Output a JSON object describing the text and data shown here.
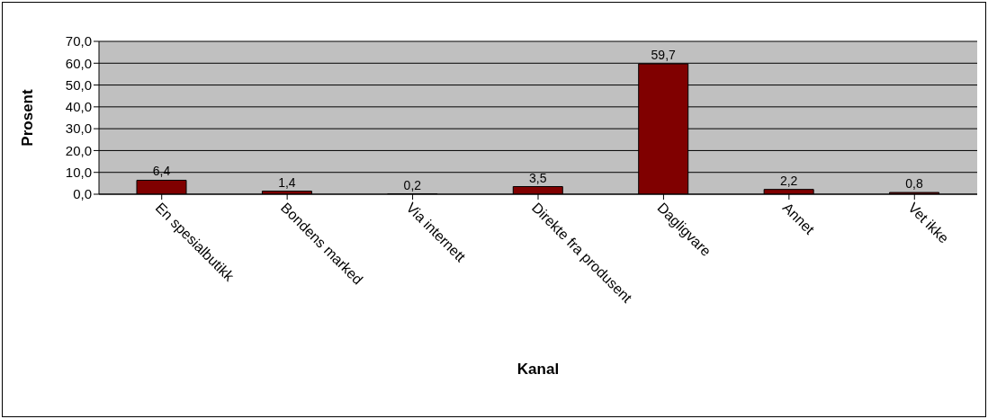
{
  "chart_data": {
    "type": "bar",
    "xlabel": "Kanal",
    "ylabel": "Prosent",
    "categories": [
      "En spesialbutikk",
      "Bondens marked",
      "Via internett",
      "Direkte fra produsent",
      "Dagligvare",
      "Annet",
      "Vet ikke"
    ],
    "values": [
      6.4,
      1.4,
      0.2,
      3.5,
      59.7,
      2.2,
      0.8
    ],
    "value_labels": [
      "6,4",
      "1,4",
      "0,2",
      "3,5",
      "59,7",
      "2,2",
      "0,8"
    ],
    "color": "#800000",
    "ylim": [
      0,
      70
    ],
    "yticks": [
      {
        "value": 0,
        "label": "0,0"
      },
      {
        "value": 10,
        "label": "10,0"
      },
      {
        "value": 20,
        "label": "20,0"
      },
      {
        "value": 30,
        "label": "30,0"
      },
      {
        "value": 40,
        "label": "40,0"
      },
      {
        "value": 50,
        "label": "50,0"
      },
      {
        "value": 60,
        "label": "60,0"
      },
      {
        "value": 70,
        "label": "70,0"
      }
    ],
    "grid": "y",
    "legend": false
  }
}
